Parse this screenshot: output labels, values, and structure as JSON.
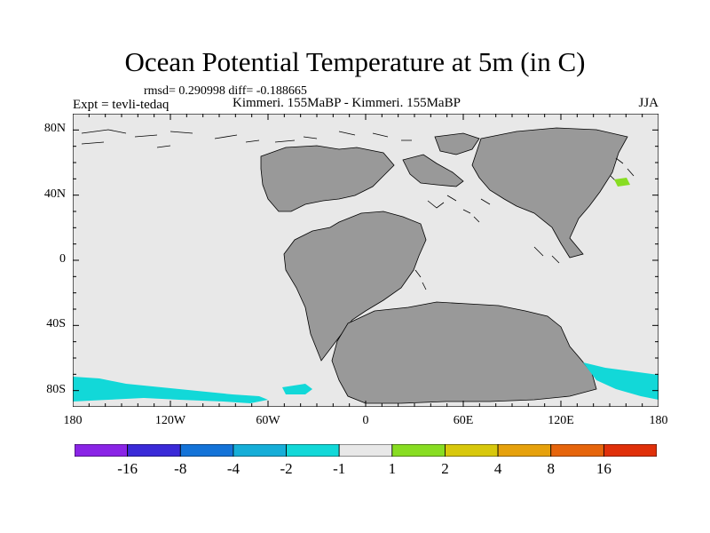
{
  "title": "Ocean Potential Temperature at 5m (in C)",
  "stats_line": "rmsd= 0.290998 diff= -0.188665",
  "experiment_label": "Expt = tevli-tedaq",
  "runs_label": "Kimmeri. 155MaBP - Kimmeri. 155MaBP",
  "season": "JJA",
  "map": {
    "x_tick_labels": [
      "180",
      "120W",
      "60W",
      "0",
      "60E",
      "120E",
      "180"
    ],
    "x_tick_values": [
      -180,
      -120,
      -60,
      0,
      60,
      120,
      180
    ],
    "y_tick_labels": [
      "80N",
      "40N",
      "0",
      "40S",
      "80S"
    ],
    "y_tick_values": [
      80,
      40,
      0,
      -40,
      -80
    ],
    "lon_range": [
      -180,
      180
    ],
    "lat_range": [
      -90,
      90
    ],
    "colors": {
      "ocean": "#e8e8e8",
      "land": "#999999",
      "coast": "#000000",
      "anomaly_negative": "#12d8d8",
      "anomaly_positive": "#88dd22"
    }
  },
  "colorbar": {
    "labels": [
      "-16",
      "-8",
      "-4",
      "-2",
      "-1",
      "1",
      "2",
      "4",
      "8",
      "16"
    ],
    "colors": [
      "#8a24e6",
      "#3a2ad8",
      "#1473d8",
      "#16aed8",
      "#12d8d8",
      "#e8e8e8",
      "#88dd22",
      "#d8c80c",
      "#e6a10c",
      "#e6650c",
      "#e0300a"
    ]
  }
}
